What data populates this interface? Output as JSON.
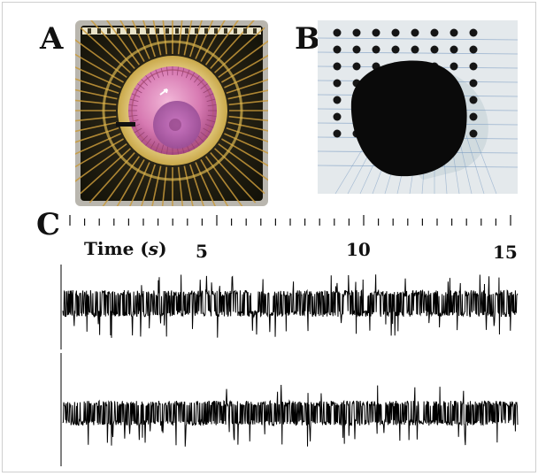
{
  "figure": {
    "panels": {
      "a": {
        "label": "A"
      },
      "b": {
        "label": "B"
      },
      "c": {
        "label": "C"
      }
    },
    "time_axis": {
      "title_prefix": "Time (",
      "title_unit": "s",
      "title_suffix": ")",
      "tick_labels": [
        "5",
        "10",
        "15"
      ],
      "tick_values": [
        5,
        10,
        15
      ],
      "range_s": [
        0,
        15
      ]
    },
    "traces": {
      "count": 2,
      "color": "#000000"
    },
    "colors": {
      "chip_gold": "#c9a040",
      "chip_pink": "#d88ab0",
      "chip_frame": "#1a1a12",
      "tissue_black": "#0a0a0a",
      "electrode_dark": "#151515",
      "lines_blue": "#7f9fc4"
    }
  }
}
